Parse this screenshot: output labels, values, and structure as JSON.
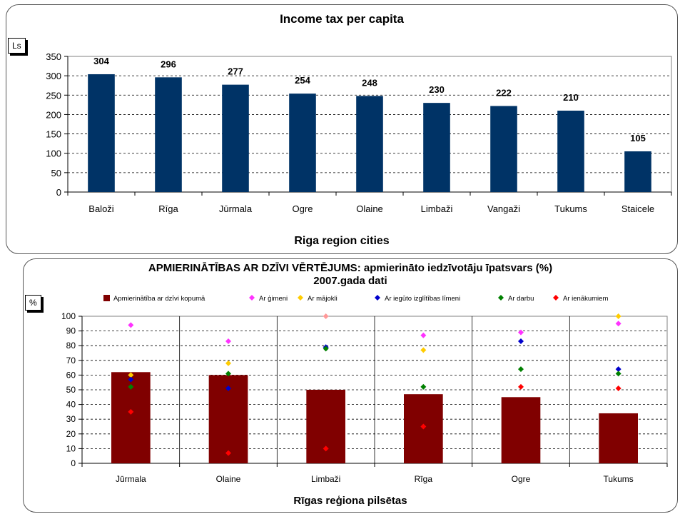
{
  "chart_data": [
    {
      "type": "bar",
      "title": "Income tax per capita",
      "ylabel": "Ls",
      "xlabel": "Riga region cities",
      "categories": [
        "Baloži",
        "Rīga",
        "Jūrmala",
        "Ogre",
        "Olaine",
        "Limbaži",
        "Vangaži",
        "Tukums",
        "Staicele"
      ],
      "values": [
        304,
        296,
        277,
        254,
        248,
        230,
        222,
        210,
        105
      ],
      "ylim": [
        0,
        350
      ],
      "yticks": [
        0,
        50,
        100,
        150,
        200,
        250,
        300,
        350
      ],
      "bar_color": "#003366",
      "grid": "dashed horizontal",
      "data_labels": true
    },
    {
      "type": "bar",
      "title": "APMIERINĀTĪBAS AR DZĪVI VĒRTĒJUMS: apmierināto iedzīvotāju īpatsvars (%)",
      "subtitle": "2007.gada dati",
      "ylabel": "%",
      "xlabel": "Rīgas reģiona pilsētas",
      "categories": [
        "Jūrmala",
        "Olaine",
        "Limbaži",
        "Rīga",
        "Ogre",
        "Tukums"
      ],
      "ylim": [
        0,
        100
      ],
      "yticks": [
        0,
        10,
        20,
        30,
        40,
        50,
        60,
        70,
        80,
        90,
        100
      ],
      "legend_position": "top",
      "series": [
        {
          "name": "Apmierinātība ar dzīvi kopumā",
          "kind": "bar",
          "color": "#800000",
          "values": [
            62,
            60,
            50,
            47,
            45,
            34
          ]
        },
        {
          "name": "Ar ģimeni",
          "kind": "point",
          "color": "#ff33ff",
          "values": [
            94,
            83,
            null,
            87,
            89,
            95
          ]
        },
        {
          "name": "Ar mājokli",
          "kind": "point",
          "color": "#ffcc00",
          "values": [
            60,
            68,
            null,
            77,
            null,
            100
          ]
        },
        {
          "name": "Ar iegūto izglītības līmeni",
          "kind": "point",
          "color": "#0000cc",
          "values": [
            57,
            51,
            79,
            null,
            83,
            64
          ]
        },
        {
          "name": "Ar darbu",
          "kind": "point",
          "color": "#008000",
          "values": [
            52,
            61,
            78,
            52,
            64,
            61
          ]
        },
        {
          "name": "Ar ienākumiem",
          "kind": "point",
          "color": "#ff0000",
          "values": [
            35,
            7,
            10,
            25,
            52,
            51
          ]
        }
      ],
      "extra_points": [
        {
          "category": "Limbaži",
          "value": 100,
          "color": "#ff9999"
        }
      ]
    }
  ]
}
